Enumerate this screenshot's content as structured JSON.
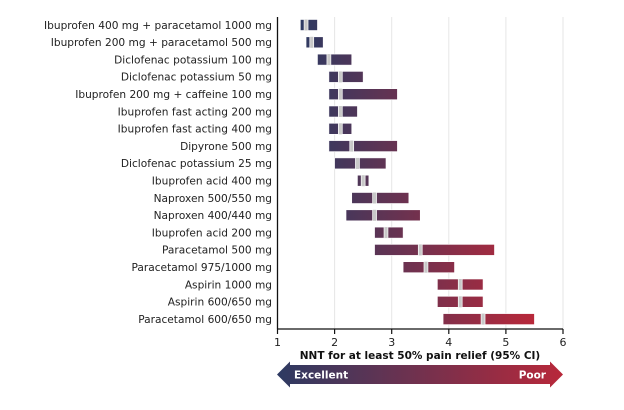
{
  "chart_data": {
    "type": "bar",
    "subtype": "floating-range",
    "title": "",
    "xlabel": "NNT for at least 50% pain relief (95% CI)",
    "ylabel": "",
    "xlim": [
      1,
      6
    ],
    "xticks": [
      "1",
      "2",
      "3",
      "4",
      "5",
      "6"
    ],
    "grid": true,
    "categories": [
      "Ibuprofen 400 mg + paracetamol 1000 mg",
      "Ibuprofen 200 mg + paracetamol 500 mg",
      "Diclofenac potassium 100 mg",
      "Diclofenac potassium 50 mg",
      "Ibuprofen 200 mg + caffeine 100 mg",
      "Ibuprofen fast acting 200 mg",
      "Ibuprofen fast acting 400 mg",
      "Dipyrone 500 mg",
      "Diclofenac potassium 25 mg",
      "Ibuprofen acid 400 mg",
      "Naproxen 500/550 mg",
      "Naproxen 400/440 mg",
      "Ibuprofen acid 200 mg",
      "Paracetamol 500 mg",
      "Paracetamol 975/1000 mg",
      "Aspirin 1000 mg",
      "Aspirin 600/650 mg",
      "Paracetamol 600/650 mg"
    ],
    "series": [
      {
        "name": "NNT",
        "values": [
          1.5,
          1.6,
          1.9,
          2.1,
          2.1,
          2.1,
          2.1,
          2.3,
          2.4,
          2.5,
          2.7,
          2.7,
          2.9,
          3.5,
          3.6,
          4.2,
          4.2,
          4.6
        ]
      },
      {
        "name": "CI low",
        "values": [
          1.4,
          1.5,
          1.7,
          1.9,
          1.9,
          1.9,
          1.9,
          1.9,
          2.0,
          2.4,
          2.3,
          2.2,
          2.7,
          2.7,
          3.2,
          3.8,
          3.8,
          3.9
        ]
      },
      {
        "name": "CI high",
        "values": [
          1.7,
          1.8,
          2.3,
          2.5,
          3.1,
          2.4,
          2.3,
          3.1,
          2.9,
          2.6,
          3.3,
          3.5,
          3.2,
          4.8,
          4.1,
          4.6,
          4.6,
          5.5
        ]
      }
    ],
    "scale": {
      "low_label": "Excellent",
      "high_label": "Poor"
    },
    "colors": {
      "good": "#2d3a62",
      "poor": "#b8283a",
      "marker": "#c8c8c8",
      "grid": "#e6e6e6",
      "axis": "#111111"
    }
  }
}
